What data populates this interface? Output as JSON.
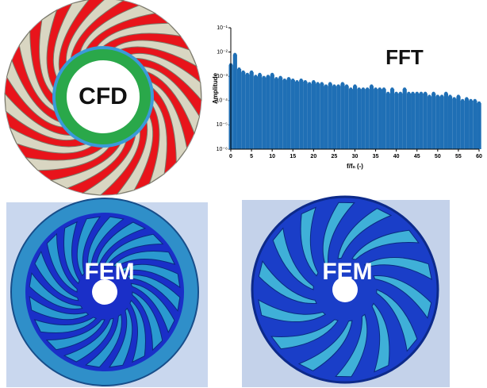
{
  "panels": {
    "cfd": {
      "label": "CFD"
    },
    "fem_left": {
      "label": "FEM"
    },
    "fem_right": {
      "label": "FEM"
    }
  },
  "chart_data": {
    "type": "stem",
    "annotation": "FFT",
    "x_label": "f/fₙ (-)",
    "y_label": "Amplitude",
    "color": "#1f6fb5",
    "yscale": "log",
    "x": [
      0,
      1,
      2,
      3,
      4,
      5,
      6,
      7,
      8,
      9,
      10,
      11,
      12,
      13,
      14,
      15,
      16,
      17,
      18,
      19,
      20,
      21,
      22,
      23,
      24,
      25,
      26,
      27,
      28,
      29,
      30,
      31,
      32,
      33,
      34,
      35,
      36,
      37,
      38,
      39,
      40,
      41,
      42,
      43,
      44,
      45,
      46,
      47,
      48,
      49,
      50,
      51,
      52,
      53,
      54,
      55,
      56,
      57,
      58,
      59,
      60
    ],
    "values": [
      0.003,
      0.008,
      0.002,
      0.0015,
      0.0012,
      0.0015,
      0.001,
      0.0012,
      0.0009,
      0.001,
      0.0012,
      0.0008,
      0.0009,
      0.0007,
      0.0008,
      0.0007,
      0.0006,
      0.0007,
      0.0006,
      0.0005,
      0.0006,
      0.0005,
      0.0005,
      0.0004,
      0.0005,
      0.0004,
      0.0004,
      0.0005,
      0.0004,
      0.0003,
      0.0004,
      0.0003,
      0.0003,
      0.0003,
      0.0004,
      0.0003,
      0.0003,
      0.0003,
      0.0002,
      0.0003,
      0.0002,
      0.0002,
      0.0003,
      0.0002,
      0.0002,
      0.0002,
      0.0002,
      0.0002,
      0.00015,
      0.0002,
      0.00015,
      0.00015,
      0.0002,
      0.00015,
      0.00012,
      0.00015,
      0.0001,
      0.00012,
      0.0001,
      0.0001,
      8e-05
    ],
    "xlim": [
      0,
      60
    ],
    "xticks": [
      0,
      5,
      10,
      15,
      20,
      25,
      30,
      35,
      40,
      45,
      50,
      55,
      60
    ],
    "ylim": [
      1e-06,
      0.1
    ],
    "yticks": [
      {
        "value": 1e-06,
        "label": "10⁻⁶"
      },
      {
        "value": 1e-05,
        "label": "10⁻⁵"
      },
      {
        "value": 0.0001,
        "label": "10⁻⁴"
      },
      {
        "value": 0.001,
        "label": "10⁻³"
      },
      {
        "value": 0.01,
        "label": "10⁻²"
      },
      {
        "value": 0.1,
        "label": "10⁻¹"
      }
    ]
  }
}
